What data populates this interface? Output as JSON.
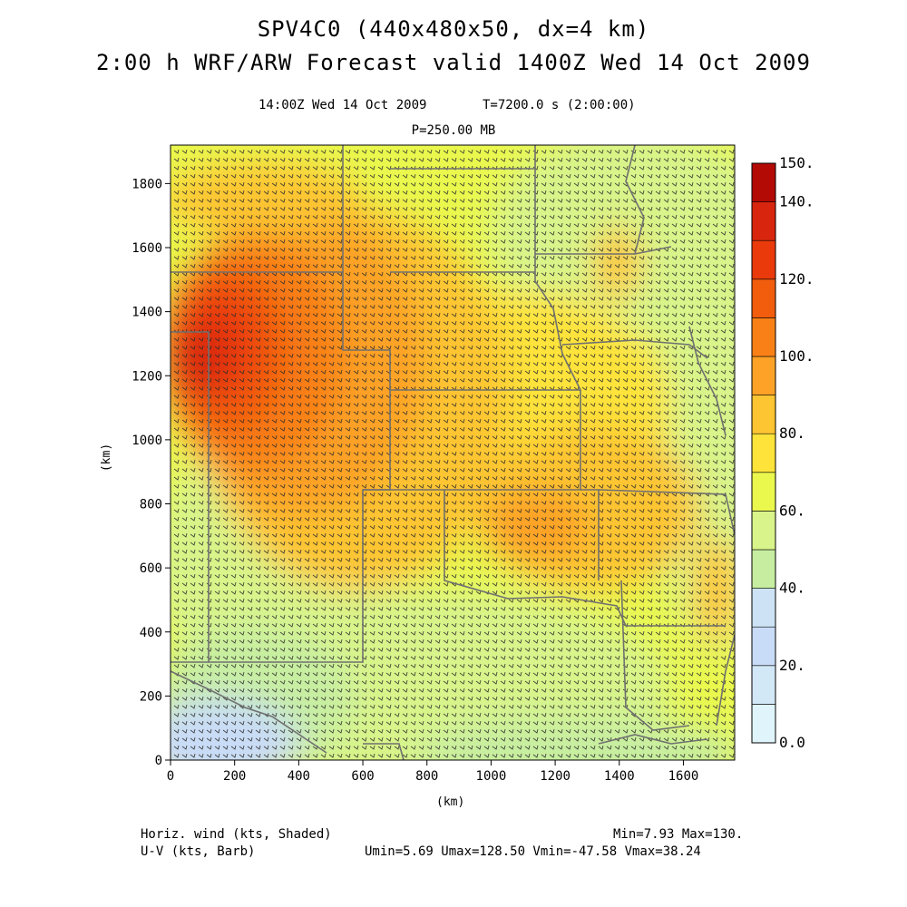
{
  "header": {
    "title": "SPV4C0 (440x480x50, dx=4 km)",
    "subtitle": "2:00 h WRF/ARW Forecast valid 1400Z Wed 14 Oct 2009",
    "valid_time": "14:00Z Wed 14 Oct 2009",
    "model_time": "T=7200.0 s (2:00:00)",
    "level": "P=250.00 MB"
  },
  "axes": {
    "xlabel": "(km)",
    "ylabel": "(km)"
  },
  "footer": {
    "field1": "Horiz. wind (kts, Shaded)",
    "field2": "U-V (kts, Barb)",
    "minmax": "Min=7.93 Max=130.",
    "uv_stats": "Umin=5.69 Umax=128.50 Vmin=-47.58 Vmax=38.24"
  },
  "chart_data": {
    "type": "heatmap",
    "x_ticks": [
      0,
      200,
      400,
      600,
      800,
      1000,
      1200,
      1400,
      1600
    ],
    "y_ticks": [
      0,
      200,
      400,
      600,
      800,
      1000,
      1200,
      1400,
      1600,
      1800
    ],
    "xlim": [
      0,
      1760
    ],
    "ylim": [
      0,
      1920
    ],
    "colorbar": {
      "levels": [
        0,
        10,
        20,
        30,
        40,
        50,
        60,
        70,
        80,
        90,
        100,
        110,
        120,
        130,
        140,
        150
      ],
      "labels": [
        "0.0",
        "20.",
        "40.",
        "60.",
        "80.",
        "100.",
        "120.",
        "140.",
        "150."
      ],
      "colors": [
        "#e0f4fb",
        "#d3e8f7",
        "#c9dcf7",
        "#cde3f5",
        "#c7eea0",
        "#d8f48a",
        "#eaf84e",
        "#fde33a",
        "#fdc532",
        "#fda227",
        "#f98017",
        "#f25c0d",
        "#ea3a0c",
        "#d8260e",
        "#b30a06"
      ]
    },
    "field_range": {
      "min": 7.93,
      "max": 130
    },
    "u_range": {
      "min": 5.69,
      "max": 128.5
    },
    "v_range": {
      "min": -47.58,
      "max": 38.24
    }
  }
}
